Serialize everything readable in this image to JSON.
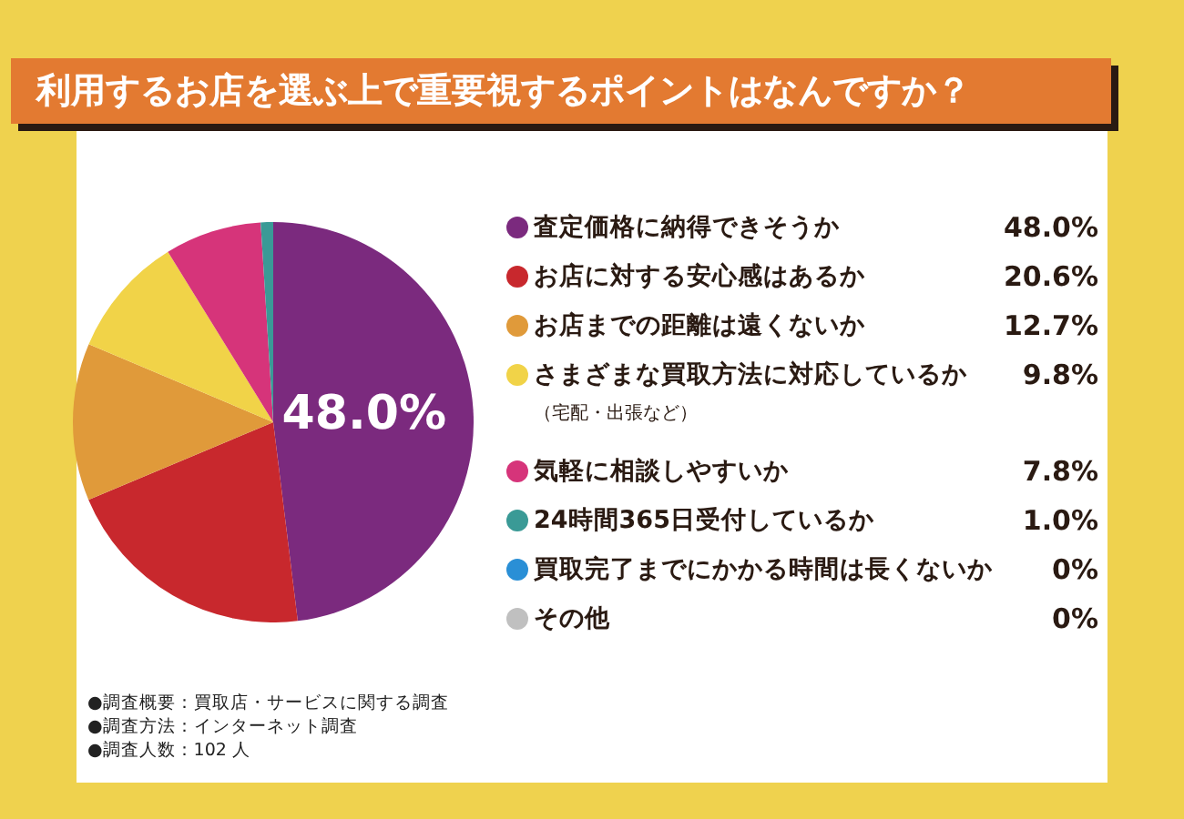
{
  "chart_data": {
    "type": "pie",
    "title": "利用するお店を選ぶ上で重要視するポイントはなんですか？",
    "categories": [
      "査定価格に納得できそうか",
      "お店に対する安心感はあるか",
      "お店までの距離は遠くないか",
      "さまざまな買取方法に対応しているか（宅配・出張など）",
      "気軽に相談しやすいか",
      "24時間365日受付しているか",
      "買取完了までにかかる時間は長くないか",
      "その他"
    ],
    "values": [
      48.0,
      20.6,
      12.7,
      9.8,
      7.8,
      1.0,
      0,
      0
    ],
    "value_labels": [
      "48.0%",
      "20.6%",
      "12.7%",
      "9.8%",
      "7.8%",
      "1.0%",
      "0%",
      "0%"
    ],
    "colors": [
      "#7b2a7e",
      "#c8282d",
      "#e09a3a",
      "#f1d348",
      "#d6347a",
      "#3a9a96",
      "#2a8fd6",
      "#c0c0c0"
    ],
    "legend": "right",
    "annotations": [
      {
        "text": "48.0%",
        "x": "査定価格に納得できそうか"
      },
      "●調査概要：買取店・サービスに関する調査",
      "●調査方法：インターネット調査",
      "●調査人数：102 人"
    ]
  }
}
